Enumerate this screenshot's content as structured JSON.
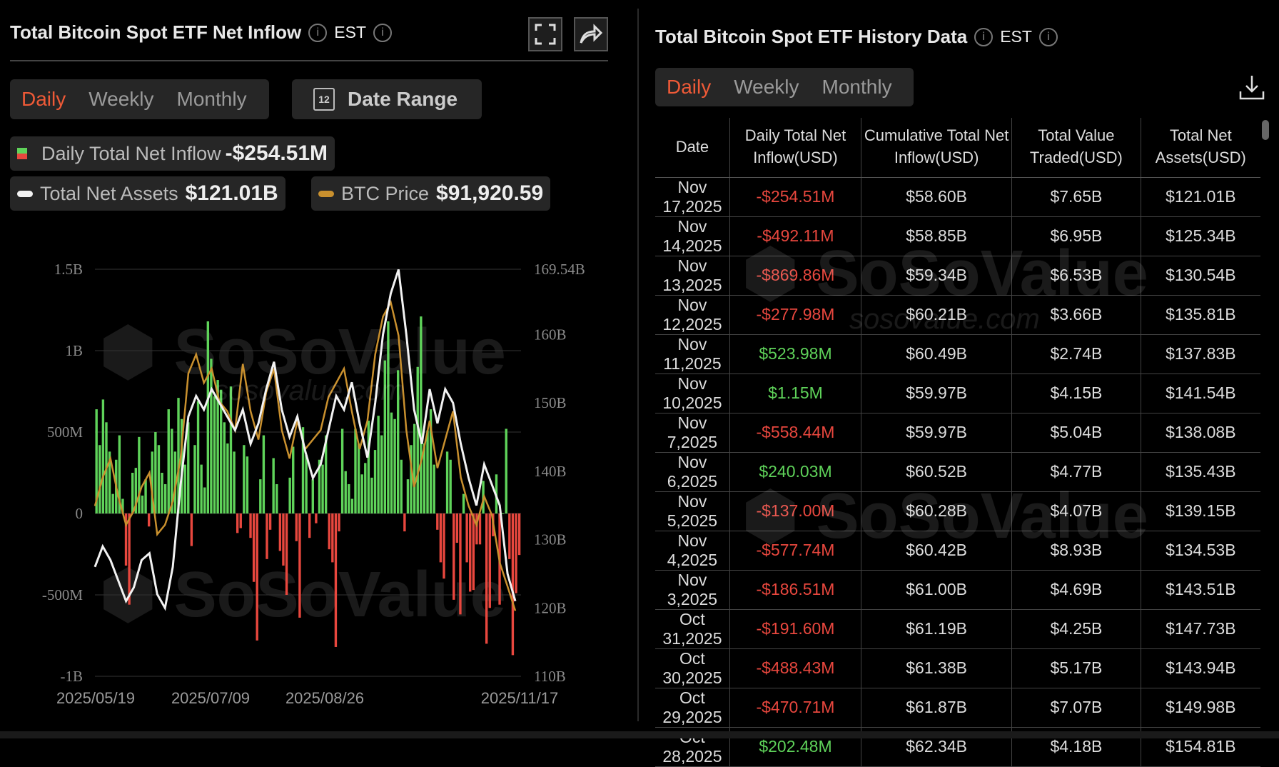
{
  "left": {
    "title": "Total Bitcoin Spot ETF Net Inflow",
    "tz": "EST",
    "tabs": [
      "Daily",
      "Weekly",
      "Monthly"
    ],
    "date_range": "Date Range",
    "calendar_day": "12",
    "legend": {
      "inflow_label": "Daily Total Net Inflow",
      "inflow_value": "-$254.51M",
      "assets_label": "Total Net Assets",
      "assets_value": "$121.01B",
      "price_label": "BTC Price",
      "price_value": "$91,920.59"
    }
  },
  "right": {
    "title": "Total Bitcoin Spot ETF History Data",
    "tz": "EST",
    "tabs": [
      "Daily",
      "Weekly",
      "Monthly"
    ],
    "columns": [
      "Date",
      "Daily Total Net Inflow(USD)",
      "Cumulative Total Net Inflow(USD)",
      "Total Value Traded(USD)",
      "Total Net Assets(USD)"
    ],
    "rows": [
      [
        "Nov 17,2025",
        "-$254.51M",
        "$58.60B",
        "$7.65B",
        "$121.01B"
      ],
      [
        "Nov 14,2025",
        "-$492.11M",
        "$58.85B",
        "$6.95B",
        "$125.34B"
      ],
      [
        "Nov 13,2025",
        "-$869.86M",
        "$59.34B",
        "$6.53B",
        "$130.54B"
      ],
      [
        "Nov 12,2025",
        "-$277.98M",
        "$60.21B",
        "$3.66B",
        "$135.81B"
      ],
      [
        "Nov 11,2025",
        "$523.98M",
        "$60.49B",
        "$2.74B",
        "$137.83B"
      ],
      [
        "Nov 10,2025",
        "$1.15M",
        "$59.97B",
        "$4.15B",
        "$141.54B"
      ],
      [
        "Nov 7,2025",
        "-$558.44M",
        "$59.97B",
        "$5.04B",
        "$138.08B"
      ],
      [
        "Nov 6,2025",
        "$240.03M",
        "$60.52B",
        "$4.77B",
        "$135.43B"
      ],
      [
        "Nov 5,2025",
        "-$137.00M",
        "$60.28B",
        "$4.07B",
        "$139.15B"
      ],
      [
        "Nov 4,2025",
        "-$577.74M",
        "$60.42B",
        "$8.93B",
        "$134.53B"
      ],
      [
        "Nov 3,2025",
        "-$186.51M",
        "$61.00B",
        "$4.69B",
        "$143.51B"
      ],
      [
        "Oct 31,2025",
        "-$191.60M",
        "$61.19B",
        "$4.25B",
        "$147.73B"
      ],
      [
        "Oct 30,2025",
        "-$488.43M",
        "$61.38B",
        "$5.17B",
        "$143.94B"
      ],
      [
        "Oct 29,2025",
        "-$470.71M",
        "$61.87B",
        "$7.07B",
        "$149.98B"
      ],
      [
        "Oct 28,2025",
        "$202.48M",
        "$62.34B",
        "$4.18B",
        "$154.81B"
      ]
    ]
  },
  "watermark": {
    "brand": "SoSoValue",
    "site": "sosovalue.com"
  },
  "colors": {
    "accent": "#ef5a37",
    "positive": "#5fd35a",
    "negative": "#e8473e",
    "assets_line": "#f2f2f2",
    "price_line": "#c9902e"
  },
  "chart_data": {
    "type": "bar+line",
    "title": "Total Bitcoin Spot ETF Net Inflow",
    "x_ticks": [
      "2025/05/19",
      "2025/07/09",
      "2025/08/26",
      "2025/11/17"
    ],
    "y_left_ticks": [
      "1.5B",
      "1B",
      "500M",
      "0",
      "-500M",
      "-1B"
    ],
    "y_left_range": [
      -1000,
      1500
    ],
    "y_left_unit": "M USD",
    "y_right_ticks": [
      "169.54B",
      "160B",
      "150B",
      "140B",
      "130B",
      "120B",
      "110B"
    ],
    "y_right_range": [
      110,
      169.54
    ],
    "daily_net_inflow_musd": [
      640,
      420,
      700,
      560,
      380,
      120,
      330,
      480,
      90,
      -320,
      -560,
      250,
      280,
      470,
      110,
      210,
      -80,
      380,
      500,
      420,
      250,
      180,
      640,
      520,
      380,
      710,
      580,
      300,
      560,
      -200,
      420,
      690,
      300,
      160,
      1180,
      950,
      720,
      820,
      760,
      560,
      430,
      780,
      380,
      -120,
      -90,
      420,
      350,
      -150,
      -420,
      -780,
      210,
      480,
      -280,
      -100,
      340,
      180,
      -230,
      -320,
      -500,
      220,
      410,
      -170,
      -640,
      530,
      360,
      -150,
      210,
      -60,
      330,
      300,
      480,
      -220,
      -300,
      -820,
      -110,
      520,
      260,
      180,
      90,
      520,
      430,
      240,
      310,
      570,
      220,
      390,
      600,
      480,
      940,
      1180,
      620,
      580,
      880,
      330,
      -110,
      210,
      420,
      550,
      900,
      1210,
      430,
      510,
      640,
      300,
      -100,
      -300,
      -400,
      380,
      330,
      -530,
      -180,
      -620,
      120,
      -300,
      -480,
      -470,
      -190,
      -190,
      200,
      -800,
      -580,
      -140,
      240,
      -560,
      1,
      520,
      -280,
      -870,
      -490,
      -255
    ],
    "series": [
      {
        "name": "Total Net Assets",
        "unit": "B USD",
        "values": [
          126,
          129,
          127,
          124,
          121,
          123,
          127,
          128,
          122,
          120,
          126,
          138,
          148,
          151,
          149,
          152,
          150,
          148,
          146,
          149,
          144,
          147,
          152,
          156,
          149,
          145,
          148,
          143,
          139,
          141,
          146,
          151,
          149,
          153,
          147,
          142,
          150,
          160,
          166,
          169.5,
          160,
          149,
          144,
          152,
          147,
          152,
          150,
          144,
          139,
          135,
          141,
          138,
          135,
          125,
          121
        ]
      },
      {
        "name": "BTC Price",
        "unit": "USD",
        "values": [
          103000,
          106000,
          108000,
          104000,
          101000,
          102500,
          105000,
          106500,
          100000,
          101000,
          103500,
          108000,
          117000,
          119000,
          116000,
          117500,
          114000,
          113000,
          111000,
          118000,
          113000,
          110000,
          115000,
          117500,
          111000,
          108000,
          112000,
          109000,
          110000,
          111000,
          114500,
          116000,
          117500,
          113000,
          109000,
          112000,
          119000,
          123000,
          124500,
          121000,
          111000,
          105000,
          108000,
          112000,
          107000,
          110000,
          113000,
          106000,
          103000,
          101000,
          104000,
          102000,
          97000,
          94500,
          91920
        ]
      }
    ]
  }
}
